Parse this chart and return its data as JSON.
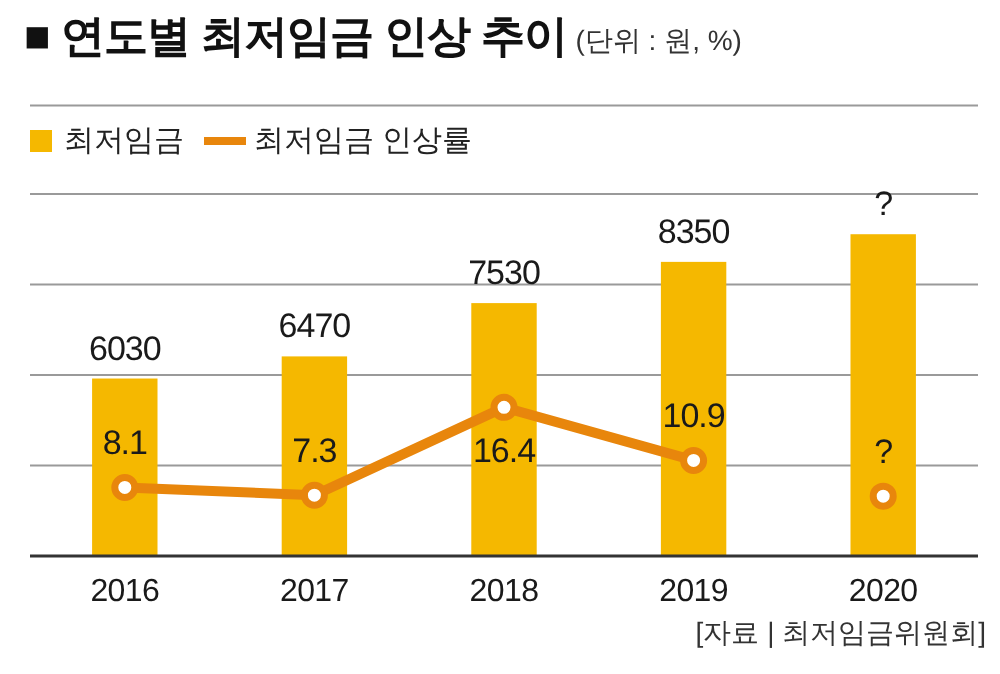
{
  "chart_data": {
    "type": "bar",
    "title": "■ 연도별 최저임금 인상 추이",
    "subtitle": "(단위 : 원, %)",
    "annotations": [
      "[자료 | 최저임금위원회]"
    ],
    "categories": [
      "2016",
      "2017",
      "2018",
      "2019",
      "2020"
    ],
    "series": [
      {
        "name": "최저임금",
        "color": "#f5b800",
        "values": [
          6030,
          6470,
          7530,
          8350,
          8900
        ],
        "value_labels": [
          "6030",
          "6470",
          "7530",
          "8350",
          "?"
        ]
      },
      {
        "name": "최저임금 인상률",
        "type": "line",
        "axis": "y2",
        "color": "#e8860c",
        "values": [
          8.1,
          7.3,
          16.4,
          10.9,
          null
        ],
        "value_labels": [
          "8.1",
          "7.3",
          "16.4",
          "10.9",
          null
        ]
      },
      {
        "type": "scatter",
        "axis": "y2",
        "color": "#e8860c",
        "values": [
          null,
          null,
          null,
          null,
          7.2
        ],
        "value_labels": [
          null,
          null,
          null,
          null,
          "?"
        ]
      }
    ],
    "ylim": [
      2500,
      9700
    ],
    "yticks": [
      {
        "value": 4300,
        "label": null
      },
      {
        "value": 6100,
        "label": null
      },
      {
        "value": 7900,
        "label": null
      },
      {
        "value": 9700,
        "label": null
      }
    ],
    "y2lim": [
      1,
      38.5
    ],
    "grid": "y",
    "tick_labels": "x",
    "legend": "top left",
    "marker": "circle",
    "line_style": "solid"
  }
}
